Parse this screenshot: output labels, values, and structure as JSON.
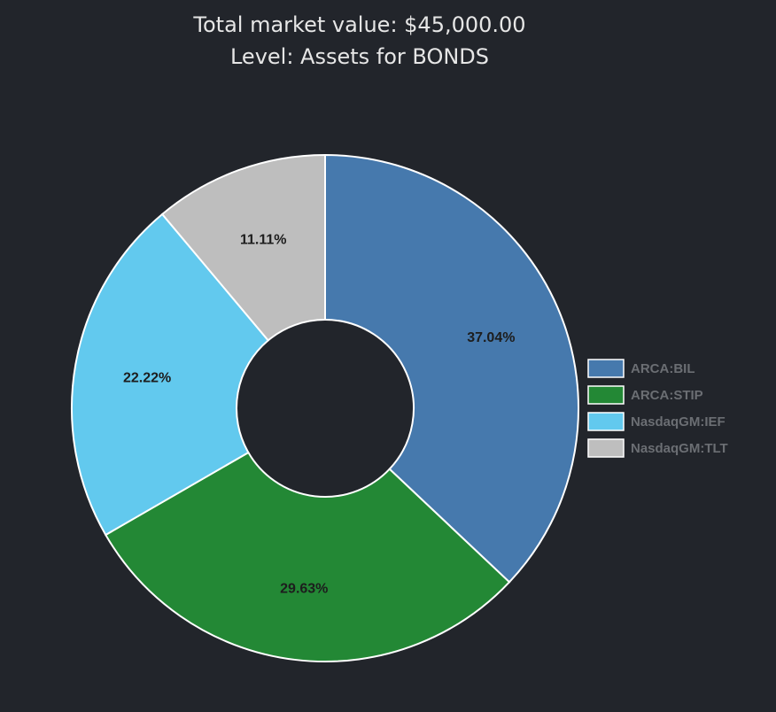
{
  "header": {
    "title_line1": "Total market value: $45,000.00",
    "title_line2": "Level: Assets for BONDS"
  },
  "chart_data": {
    "type": "pie",
    "donut": true,
    "title": "Total market value: $45,000.00",
    "subtitle": "Level: Assets for BONDS",
    "categories": [
      "ARCA:BIL",
      "ARCA:STIP",
      "NasdaqGM:IEF",
      "NasdaqGM:TLT"
    ],
    "values": [
      37.04,
      29.63,
      22.22,
      11.11
    ],
    "labels": [
      "37.04%",
      "29.63%",
      "22.22%",
      "11.11%"
    ],
    "colors": [
      "#4679ad",
      "#238835",
      "#62c9ee",
      "#bebebe"
    ],
    "legend": "right",
    "start_angle": "top",
    "direction": "clockwise"
  }
}
